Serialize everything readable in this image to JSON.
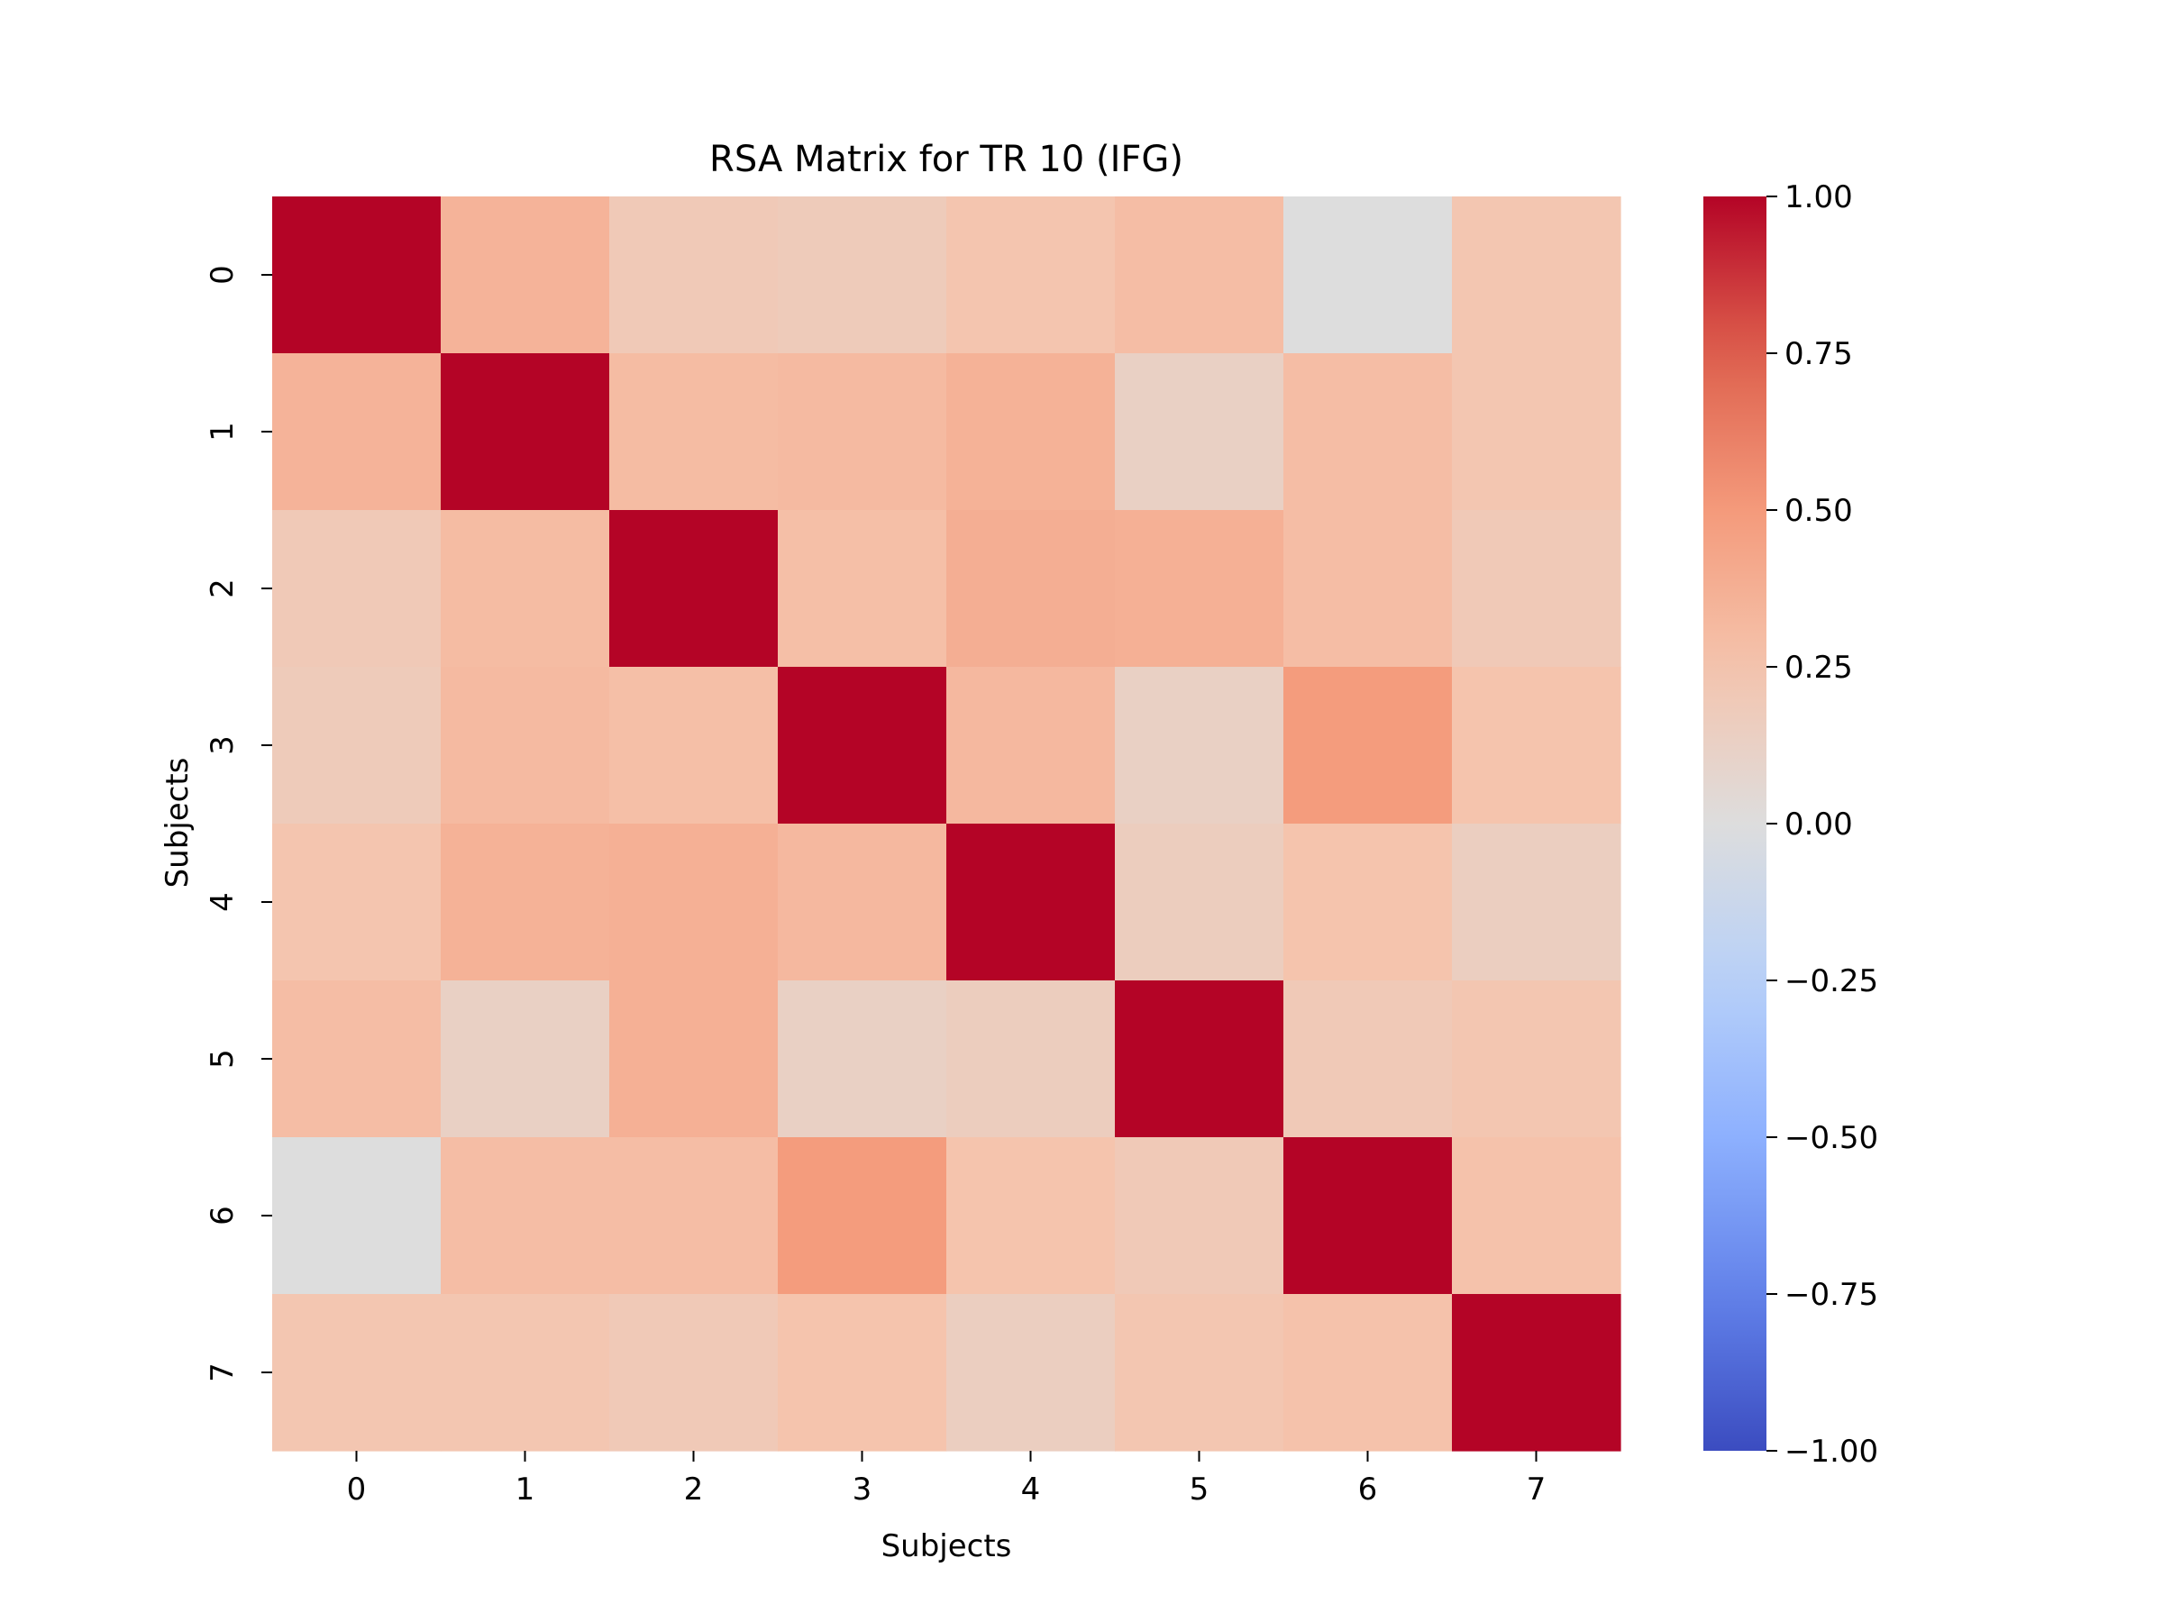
{
  "chart_data": {
    "type": "heatmap",
    "title": "RSA Matrix for TR 10 (IFG)",
    "xlabel": "Subjects",
    "ylabel": "Subjects",
    "x_categories": [
      "0",
      "1",
      "2",
      "3",
      "4",
      "5",
      "6",
      "7"
    ],
    "y_categories": [
      "0",
      "1",
      "2",
      "3",
      "4",
      "5",
      "6",
      "7"
    ],
    "values": [
      [
        1.0,
        0.35,
        0.2,
        0.18,
        0.24,
        0.29,
        0.0,
        0.23
      ],
      [
        0.35,
        1.0,
        0.3,
        0.31,
        0.36,
        0.13,
        0.29,
        0.23
      ],
      [
        0.2,
        0.3,
        1.0,
        0.28,
        0.38,
        0.37,
        0.29,
        0.2
      ],
      [
        0.18,
        0.31,
        0.28,
        1.0,
        0.32,
        0.13,
        0.49,
        0.25
      ],
      [
        0.24,
        0.36,
        0.37,
        0.32,
        1.0,
        0.16,
        0.25,
        0.15
      ],
      [
        0.29,
        0.13,
        0.37,
        0.13,
        0.16,
        1.0,
        0.2,
        0.23
      ],
      [
        0.0,
        0.29,
        0.29,
        0.49,
        0.25,
        0.2,
        1.0,
        0.26
      ],
      [
        0.23,
        0.23,
        0.2,
        0.25,
        0.15,
        0.23,
        0.26,
        1.0
      ]
    ],
    "colormap": "coolwarm",
    "vmin": -1.0,
    "vmax": 1.0,
    "colorbar_ticks": [
      "1.00",
      "0.75",
      "0.50",
      "0.25",
      "0.00",
      "−0.25",
      "−0.50",
      "−0.75",
      "−1.00"
    ],
    "colorbar_tick_values": [
      1.0,
      0.75,
      0.5,
      0.25,
      0.0,
      -0.25,
      -0.5,
      -0.75,
      -1.0
    ],
    "colorbar_position": "right",
    "grid": false
  }
}
